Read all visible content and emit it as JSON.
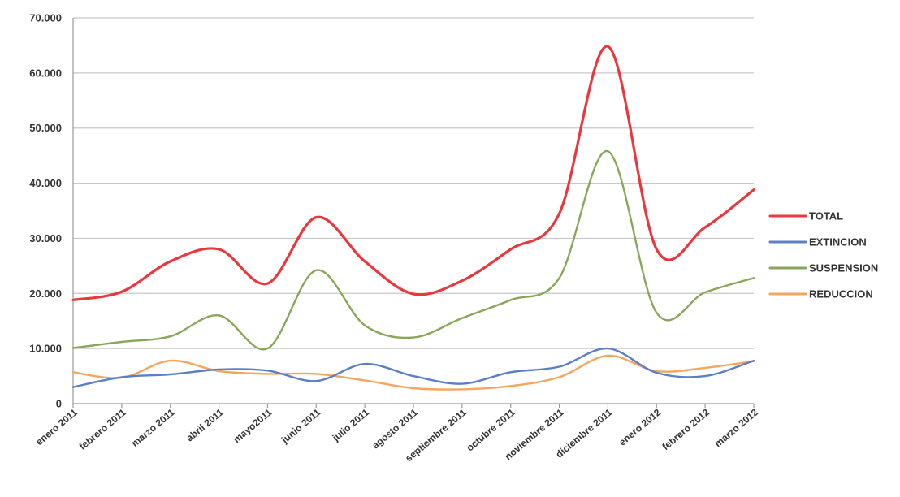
{
  "chart_data": {
    "type": "line",
    "title": "",
    "xlabel": "",
    "ylabel": "",
    "ylim": [
      0,
      70000
    ],
    "yticks": [
      0,
      10000,
      20000,
      30000,
      40000,
      50000,
      60000,
      70000
    ],
    "ytick_labels": [
      "0",
      "10.000",
      "20.000",
      "30.000",
      "40.000",
      "50.000",
      "60.000",
      "70.000"
    ],
    "grid": true,
    "legend_position": "right",
    "categories": [
      "enero 2011",
      "febrero 2011",
      "marzo 2011",
      "abril 2011",
      "mayo2011",
      "junio 2011",
      "julio 2011",
      "agosto 2011",
      "septiembre 2011",
      "octubre 2011",
      "noviembre 2011",
      "diciembre 2011",
      "enero 2012",
      "febrero 2012",
      "marzo 2012"
    ],
    "series": [
      {
        "name": "TOTAL",
        "color": "#e8383d",
        "values": [
          18800,
          20300,
          25800,
          28000,
          21800,
          33800,
          25800,
          19900,
          22300,
          28000,
          34500,
          64800,
          28000,
          32000,
          38800
        ]
      },
      {
        "name": "EXTINCION",
        "color": "#5b7fc6",
        "values": [
          3000,
          4800,
          5300,
          6200,
          6000,
          4100,
          7200,
          5000,
          3600,
          5700,
          6700,
          10000,
          5600,
          5000,
          7800
        ]
      },
      {
        "name": "SUSPENSION",
        "color": "#8aa65a",
        "values": [
          10100,
          11200,
          12200,
          16000,
          10000,
          24200,
          14200,
          12000,
          15500,
          18800,
          22800,
          45800,
          16500,
          20200,
          22800
        ]
      },
      {
        "name": "REDUCCION",
        "color": "#f2a65e",
        "values": [
          5700,
          4700,
          7800,
          5900,
          5400,
          5400,
          4200,
          2800,
          2600,
          3200,
          4800,
          8700,
          5900,
          6500,
          7700
        ]
      }
    ]
  }
}
